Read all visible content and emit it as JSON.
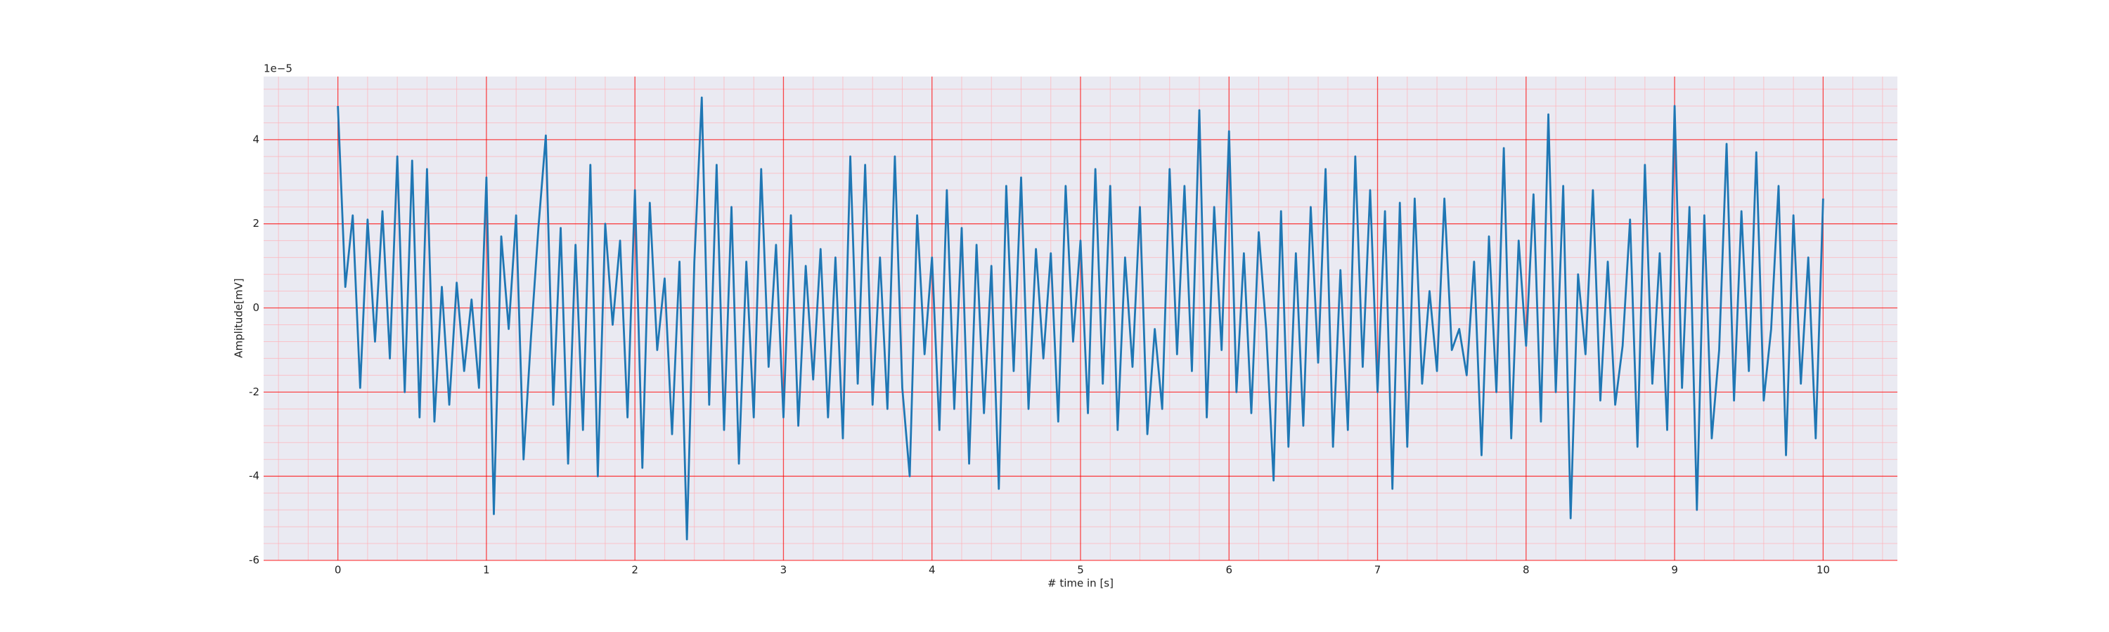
{
  "chart_data": {
    "type": "line",
    "x_label": "# time in [s]",
    "y_label": "Amplitude[mV]",
    "y_offset_label": "1e−5",
    "x": [
      0,
      0.05,
      0.1,
      0.15,
      0.2,
      0.25,
      0.3,
      0.35,
      0.4,
      0.45,
      0.5,
      0.55,
      0.6,
      0.65,
      0.7,
      0.75,
      0.8,
      0.85,
      0.9,
      0.95,
      1,
      1.05,
      1.1,
      1.15,
      1.2,
      1.25,
      1.3,
      1.35,
      1.4,
      1.45,
      1.5,
      1.55,
      1.6,
      1.65,
      1.7,
      1.75,
      1.8,
      1.85,
      1.9,
      1.95,
      2,
      2.05,
      2.1,
      2.15,
      2.2,
      2.25,
      2.3,
      2.35,
      2.4,
      2.45,
      2.5,
      2.55,
      2.6,
      2.65,
      2.7,
      2.75,
      2.8,
      2.85,
      2.9,
      2.95,
      3,
      3.05,
      3.1,
      3.15,
      3.2,
      3.25,
      3.3,
      3.35,
      3.4,
      3.45,
      3.5,
      3.55,
      3.6,
      3.65,
      3.7,
      3.75,
      3.8,
      3.85,
      3.9,
      3.95,
      4,
      4.05,
      4.1,
      4.15,
      4.2,
      4.25,
      4.3,
      4.35,
      4.4,
      4.45,
      4.5,
      4.55,
      4.6,
      4.65,
      4.7,
      4.75,
      4.8,
      4.85,
      4.9,
      4.95,
      5,
      5.05,
      5.1,
      5.15,
      5.2,
      5.25,
      5.3,
      5.35,
      5.4,
      5.45,
      5.5,
      5.55,
      5.6,
      5.65,
      5.7,
      5.75,
      5.8,
      5.85,
      5.9,
      5.95,
      6,
      6.05,
      6.1,
      6.15,
      6.2,
      6.25,
      6.3,
      6.35,
      6.4,
      6.45,
      6.5,
      6.55,
      6.6,
      6.65,
      6.7,
      6.75,
      6.8,
      6.85,
      6.9,
      6.95,
      7,
      7.05,
      7.1,
      7.15,
      7.2,
      7.25,
      7.3,
      7.35,
      7.4,
      7.45,
      7.5,
      7.55,
      7.6,
      7.65,
      7.7,
      7.75,
      7.8,
      7.85,
      7.9,
      7.95,
      8,
      8.05,
      8.1,
      8.15,
      8.2,
      8.25,
      8.3,
      8.35,
      8.4,
      8.45,
      8.5,
      8.55,
      8.6,
      8.65,
      8.7,
      8.75,
      8.8,
      8.85,
      8.9,
      8.95,
      9,
      9.05,
      9.1,
      9.15,
      9.2,
      9.25,
      9.3,
      9.35,
      9.4,
      9.45,
      9.5,
      9.55,
      9.6,
      9.65,
      9.7,
      9.75,
      9.8,
      9.85,
      9.9,
      9.95,
      10
    ],
    "series": [
      {
        "color": "#1f77b4",
        "values": [
          4.8,
          0.5,
          2.2,
          -1.9,
          2.1,
          -0.8,
          2.3,
          -1.2,
          3.6,
          -2.0,
          3.5,
          -2.6,
          3.3,
          -2.7,
          0.5,
          -2.3,
          0.6,
          -1.5,
          0.2,
          -1.9,
          3.1,
          -4.9,
          1.7,
          -0.5,
          2.2,
          -3.6,
          -0.7,
          1.9,
          4.1,
          -2.3,
          1.9,
          -3.7,
          1.5,
          -2.9,
          3.4,
          -4.0,
          2.0,
          -0.4,
          1.6,
          -2.6,
          2.8,
          -3.8,
          2.5,
          -1.0,
          0.7,
          -3.0,
          1.1,
          -5.5,
          1.1,
          5.0,
          -2.3,
          3.4,
          -2.9,
          2.4,
          -3.7,
          1.1,
          -2.6,
          3.3,
          -1.4,
          1.5,
          -2.6,
          2.2,
          -2.8,
          1.0,
          -1.7,
          1.4,
          -2.6,
          1.2,
          -3.1,
          3.6,
          -1.8,
          3.4,
          -2.3,
          1.2,
          -2.4,
          3.6,
          -1.9,
          -4.0,
          2.2,
          -1.1,
          1.2,
          -2.9,
          2.8,
          -2.4,
          1.9,
          -3.7,
          1.5,
          -2.5,
          1.0,
          -4.3,
          2.9,
          -1.5,
          3.1,
          -2.4,
          1.4,
          -1.2,
          1.3,
          -2.7,
          2.9,
          -0.8,
          1.6,
          -2.5,
          3.3,
          -1.8,
          2.9,
          -2.9,
          1.2,
          -1.4,
          2.4,
          -3.0,
          -0.5,
          -2.4,
          3.3,
          -1.1,
          2.9,
          -1.5,
          4.7,
          -2.6,
          2.4,
          -1.0,
          4.2,
          -2.0,
          1.3,
          -2.5,
          1.8,
          -0.5,
          -4.1,
          2.3,
          -3.3,
          1.3,
          -2.8,
          2.4,
          -1.3,
          3.3,
          -3.3,
          0.9,
          -2.9,
          3.6,
          -1.4,
          2.8,
          -2.0,
          2.3,
          -4.3,
          2.5,
          -3.3,
          2.6,
          -1.8,
          0.4,
          -1.5,
          2.6,
          -1.0,
          -0.5,
          -1.6,
          1.1,
          -3.5,
          1.7,
          -2.0,
          3.8,
          -3.1,
          1.6,
          -0.9,
          2.7,
          -2.7,
          4.6,
          -2.0,
          2.9,
          -5.0,
          0.8,
          -1.1,
          2.8,
          -2.2,
          1.1,
          -2.3,
          -0.9,
          2.1,
          -3.3,
          3.4,
          -1.8,
          1.3,
          -2.9,
          4.8,
          -1.9,
          2.4,
          -4.8,
          2.2,
          -3.1,
          -1.0,
          3.9,
          -2.2,
          2.3,
          -1.5,
          3.7,
          -2.2,
          -0.5,
          2.9,
          -3.5,
          2.2,
          -1.8,
          1.2,
          -3.1,
          2.6
        ]
      }
    ],
    "xlim": [
      -0.5,
      10.5
    ],
    "ylim": [
      -6,
      5.5
    ],
    "xticks": [
      0,
      1,
      2,
      3,
      4,
      5,
      6,
      7,
      8,
      9,
      10
    ],
    "yticks": [
      -6,
      -4,
      -2,
      0,
      2,
      4
    ],
    "xminorticks": [
      -0.4,
      -0.2,
      0.2,
      0.4,
      0.6,
      0.8,
      1.2,
      1.4,
      1.6,
      1.8,
      2.2,
      2.4,
      2.6,
      2.8,
      3.2,
      3.4,
      3.6,
      3.8,
      4.2,
      4.4,
      4.6,
      4.8,
      5.2,
      5.4,
      5.6,
      5.8,
      6.2,
      6.4,
      6.6,
      6.8,
      7.2,
      7.4,
      7.6,
      7.8,
      8.2,
      8.4,
      8.6,
      8.8,
      9.2,
      9.4,
      9.6,
      9.8,
      10.2,
      10.4
    ],
    "yminorticks": [
      -5.6,
      -5.2,
      -4.8,
      -4.4,
      -3.6,
      -3.2,
      -2.8,
      -2.4,
      -1.6,
      -1.2,
      -0.8,
      -0.4,
      0.4,
      0.8,
      1.2,
      1.6,
      2.4,
      2.8,
      3.2,
      3.6,
      4.4,
      4.8,
      5.2
    ],
    "grid": true,
    "grid_color": "#ff0000",
    "minor_grid_color": "#ffb0b8",
    "background": "#eaeaf2"
  }
}
